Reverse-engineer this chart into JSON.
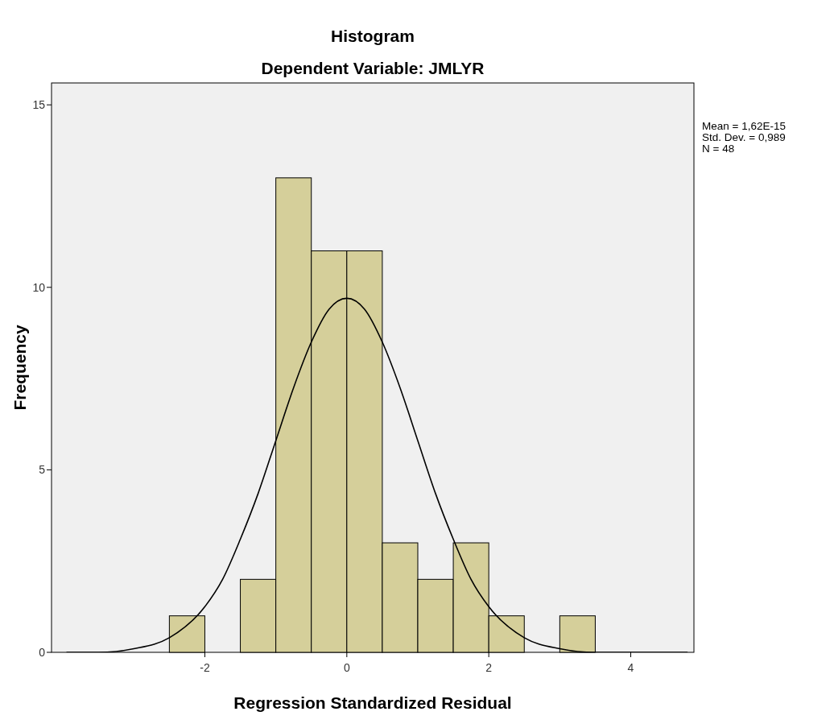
{
  "chart_data": {
    "type": "histogram",
    "title": "Histogram",
    "subtitle": "Dependent Variable: JMLYR",
    "xlabel": "Regression Standardized Residual",
    "ylabel": "Frequency",
    "bins": [
      -2.5,
      -2,
      -1.5,
      -1,
      -0.5,
      0,
      0.5,
      1,
      1.5,
      2,
      2.5,
      3,
      3.5
    ],
    "values": [
      1,
      0,
      2,
      13,
      11,
      11,
      3,
      2,
      3,
      1,
      0,
      1
    ],
    "color": "#d5cf9a",
    "series": [
      {
        "type": "line",
        "color": "#000000",
        "x": [
          -3.95,
          -3.5,
          -3,
          -2.5,
          -2,
          -1.75,
          -1.5,
          -1.25,
          -1,
          -0.75,
          -0.5,
          -0.25,
          0,
          0.25,
          0.5,
          0.75,
          1,
          1.25,
          1.5,
          1.75,
          2,
          2.5,
          3,
          3.5,
          4,
          4.8
        ],
        "values": [
          0,
          0,
          0.1,
          0.4,
          1.25,
          2,
          3.1,
          4.35,
          5.8,
          7.25,
          8.5,
          9.4,
          9.7,
          9.4,
          8.5,
          7.25,
          5.8,
          4.35,
          3.1,
          2,
          1.25,
          0.4,
          0.1,
          0,
          0,
          0
        ]
      }
    ],
    "xlim": [
      -4.16,
      4.89
    ],
    "ylim": [
      0,
      15.6
    ],
    "xticks": [
      -2,
      0,
      2,
      4
    ],
    "yticks": [
      0,
      5,
      10,
      15
    ],
    "grid": false,
    "annotations": [
      "Mean = 1,62E-15",
      "Std. Dev. = 0,989",
      "N = 48"
    ]
  }
}
